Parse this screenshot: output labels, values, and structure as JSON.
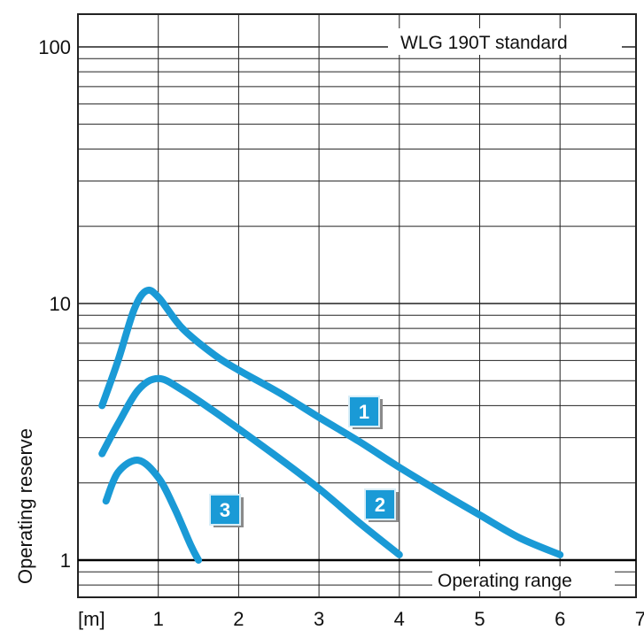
{
  "chart_data": {
    "type": "line",
    "title": "WLG 190T standard",
    "xlabel": "[m]",
    "ylabel": "Operating reserve",
    "reference_line_label": "Operating range",
    "x_ticks": [
      "1",
      "2",
      "3",
      "4",
      "5",
      "6",
      "7"
    ],
    "y_ticks": [
      "1",
      "10",
      "100"
    ],
    "xlim": [
      0,
      7
    ],
    "ylim": [
      0.75,
      100
    ],
    "y_scale": "log",
    "grid": true,
    "line_color": "#1a9ad6",
    "series": [
      {
        "label": "1",
        "points": [
          [
            0.3,
            4.0
          ],
          [
            0.5,
            6.0
          ],
          [
            0.7,
            9.5
          ],
          [
            0.85,
            11.2
          ],
          [
            1.0,
            10.6
          ],
          [
            1.3,
            8.0
          ],
          [
            1.7,
            6.3
          ],
          [
            2.0,
            5.5
          ],
          [
            2.5,
            4.5
          ],
          [
            3.0,
            3.6
          ],
          [
            3.5,
            2.9
          ],
          [
            4.0,
            2.3
          ],
          [
            4.5,
            1.85
          ],
          [
            5.0,
            1.5
          ],
          [
            5.5,
            1.22
          ],
          [
            6.0,
            1.05
          ]
        ]
      },
      {
        "label": "2",
        "points": [
          [
            0.3,
            2.6
          ],
          [
            0.5,
            3.4
          ],
          [
            0.75,
            4.6
          ],
          [
            1.0,
            5.1
          ],
          [
            1.3,
            4.6
          ],
          [
            1.8,
            3.6
          ],
          [
            2.5,
            2.5
          ],
          [
            3.0,
            1.9
          ],
          [
            3.5,
            1.4
          ],
          [
            4.0,
            1.05
          ]
        ]
      },
      {
        "label": "3",
        "points": [
          [
            0.35,
            1.7
          ],
          [
            0.5,
            2.2
          ],
          [
            0.75,
            2.45
          ],
          [
            1.0,
            2.1
          ],
          [
            1.2,
            1.6
          ],
          [
            1.4,
            1.15
          ],
          [
            1.5,
            1.0
          ]
        ]
      }
    ]
  }
}
